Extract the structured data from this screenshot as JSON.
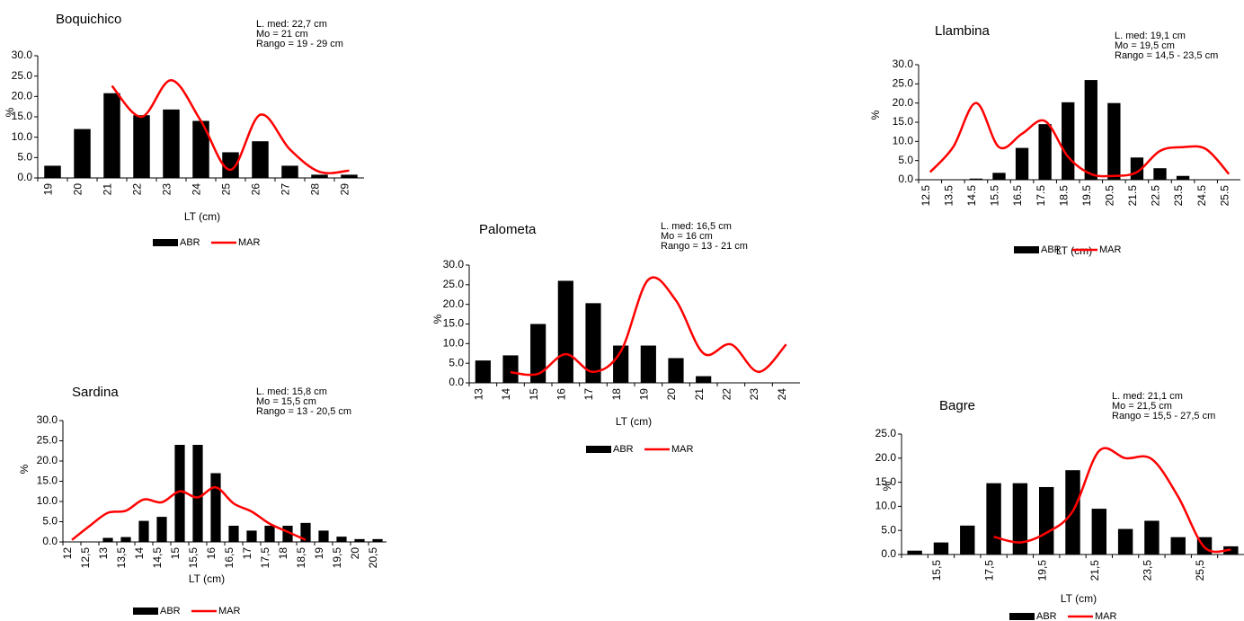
{
  "chart_data": [
    {
      "type": "combo",
      "title": "Boquichico",
      "annotations": [
        "L. med:  22,7 cm",
        "Mo =  21 cm",
        "Rango =  19 - 29 cm"
      ],
      "y_label": "%",
      "x_label": "LT (cm)",
      "categories": [
        "19",
        "20",
        "21",
        "22",
        "23",
        "24",
        "25",
        "26",
        "27",
        "28",
        "29"
      ],
      "series": [
        {
          "name": "ABR",
          "type": "bar",
          "color": "#000000",
          "values": [
            3,
            12,
            20.8,
            15.4,
            16.8,
            14,
            6.3,
            9,
            3,
            0.8,
            0.8
          ]
        },
        {
          "name": "MAR",
          "type": "line",
          "color": "#ff0000",
          "values": [
            null,
            null,
            22.6,
            15,
            24,
            14,
            2,
            15.5,
            7,
            1.5,
            1.8
          ]
        }
      ],
      "ylim": [
        0,
        30
      ],
      "yticks": [
        {
          "value": 0,
          "label": "0.0"
        },
        {
          "value": 5,
          "label": "5.0"
        },
        {
          "value": 10,
          "label": "10.0"
        },
        {
          "value": 15,
          "label": "15.0"
        },
        {
          "value": 20,
          "label": "20.0"
        },
        {
          "value": 25,
          "label": "25.0"
        },
        {
          "value": 30,
          "label": "30.0"
        }
      ]
    },
    {
      "type": "combo",
      "title": "Llambina",
      "annotations": [
        "L. med: 19,1  cm",
        "Mo = 19,5 cm",
        "Rango = 14,5 - 23,5 cm"
      ],
      "y_label": "%",
      "x_label": "LT (cm)",
      "categories": [
        "12.5",
        "13.5",
        "14.5",
        "15.5",
        "16.5",
        "17.5",
        "18.5",
        "19.5",
        "20.5",
        "21.5",
        "22.5",
        "23.5",
        "24.5",
        "25.5"
      ],
      "series": [
        {
          "name": "ABR",
          "type": "bar",
          "color": "#000000",
          "values": [
            0,
            0,
            0.3,
            1.8,
            8.3,
            14.5,
            20.2,
            26,
            20,
            5.8,
            3,
            1,
            0,
            0
          ]
        },
        {
          "name": "MAR",
          "type": "line",
          "color": "#ff0000",
          "values": [
            2,
            8.5,
            20,
            8.5,
            12,
            15.3,
            6,
            1.5,
            1,
            2,
            7.5,
            8.5,
            8,
            1.5
          ]
        }
      ],
      "ylim": [
        0,
        30
      ],
      "yticks": [
        {
          "value": 0,
          "label": "0.0"
        },
        {
          "value": 5,
          "label": "5.0"
        },
        {
          "value": 10,
          "label": "10.0"
        },
        {
          "value": 15,
          "label": "15.0"
        },
        {
          "value": 20,
          "label": "20.0"
        },
        {
          "value": 25,
          "label": "25.0"
        },
        {
          "value": 30,
          "label": "30.0"
        }
      ]
    },
    {
      "type": "combo",
      "title": "Palometa",
      "annotations": [
        "L. med: 16,5 cm",
        "Mo = 16 cm",
        "Rango = 13 - 21 cm"
      ],
      "y_label": "%",
      "x_label": "LT (cm)",
      "categories": [
        "13",
        "14",
        "15",
        "16",
        "17",
        "18",
        "19",
        "20",
        "21",
        "22",
        "23",
        "24"
      ],
      "series": [
        {
          "name": "ABR",
          "type": "bar",
          "color": "#000000",
          "values": [
            5.7,
            7,
            15,
            26,
            20.3,
            9.5,
            9.5,
            6.3,
            1.7,
            0,
            0,
            0
          ]
        },
        {
          "name": "MAR",
          "type": "line",
          "color": "#ff0000",
          "values": [
            null,
            2.7,
            2.3,
            7.3,
            2.8,
            8,
            26.3,
            21,
            7.5,
            9.8,
            2.8,
            9.8
          ]
        }
      ],
      "ylim": [
        0,
        30
      ],
      "yticks": [
        {
          "value": 0,
          "label": "0.0"
        },
        {
          "value": 5,
          "label": "5.0"
        },
        {
          "value": 10,
          "label": "10.0"
        },
        {
          "value": 15,
          "label": "15.0"
        },
        {
          "value": 20,
          "label": "20.0"
        },
        {
          "value": 25,
          "label": "25.0"
        },
        {
          "value": 30,
          "label": "30.0"
        }
      ]
    },
    {
      "type": "combo",
      "title": "Sardina",
      "annotations": [
        "L. med:  15,8 cm",
        "Mo =   15,5 cm",
        "Rango = 13 - 20,5 cm"
      ],
      "y_label": "%",
      "x_label": "LT (cm)",
      "categories": [
        "12",
        "12,5",
        "13",
        "13,5",
        "14",
        "14,5",
        "15",
        "15,5",
        "16",
        "16,5",
        "17",
        "17,5",
        "18",
        "18,5",
        "19",
        "19,5",
        "20",
        "20,5"
      ],
      "series": [
        {
          "name": "ABR",
          "type": "bar",
          "color": "#000000",
          "values": [
            0,
            0,
            1,
            1.2,
            5.2,
            6.2,
            24,
            24,
            17,
            4,
            2.8,
            4,
            4,
            4.7,
            2.8,
            1.3,
            0.7,
            0.7
          ]
        },
        {
          "name": "MAR",
          "type": "line",
          "color": "#ff0000",
          "values": [
            0.5,
            4,
            7.2,
            7.7,
            10.5,
            9.8,
            12.5,
            11,
            13.5,
            9.5,
            7.5,
            4.5,
            2.5,
            0.5,
            null,
            null,
            null,
            null
          ]
        }
      ],
      "ylim": [
        0,
        30
      ],
      "yticks": [
        {
          "value": 0,
          "label": "0.0"
        },
        {
          "value": 5,
          "label": "5.0"
        },
        {
          "value": 10,
          "label": "10.0"
        },
        {
          "value": 15,
          "label": "15.0"
        },
        {
          "value": 20,
          "label": "20.0"
        },
        {
          "value": 25,
          "label": "25.0"
        },
        {
          "value": 30,
          "label": "30.0"
        }
      ]
    },
    {
      "type": "combo",
      "title": "Bagre",
      "annotations": [
        "L. med:  21,1 cm",
        "Mo =  21,5  cm",
        "Rango = 15,5 - 27,5 cm"
      ],
      "y_label": "%",
      "x_label": "LT (cm)",
      "categories": [
        null,
        "15,5",
        null,
        "17,5",
        null,
        "19,5",
        null,
        "21,5",
        null,
        "23,5",
        null,
        "25,5",
        null
      ],
      "series": [
        {
          "name": "ABR",
          "type": "bar",
          "color": "#000000",
          "values": [
            0.8,
            2.5,
            6,
            14.8,
            14.8,
            14,
            17.5,
            9.5,
            5.3,
            7,
            3.6,
            3.6,
            1.7
          ]
        },
        {
          "name": "MAR",
          "type": "line",
          "color": "#ff0000",
          "values": [
            null,
            null,
            null,
            3.7,
            2.5,
            4.5,
            9,
            21.5,
            20,
            19.8,
            12,
            1.5,
            1
          ]
        }
      ],
      "ylim": [
        0,
        25
      ],
      "yticks": [
        {
          "value": 0,
          "label": "0.0"
        },
        {
          "value": 5,
          "label": "5.0"
        },
        {
          "value": 10,
          "label": "10.0"
        },
        {
          "value": 15,
          "label": "15.0"
        },
        {
          "value": 20,
          "label": "20.0"
        },
        {
          "value": 25,
          "label": "25.0"
        }
      ]
    }
  ]
}
